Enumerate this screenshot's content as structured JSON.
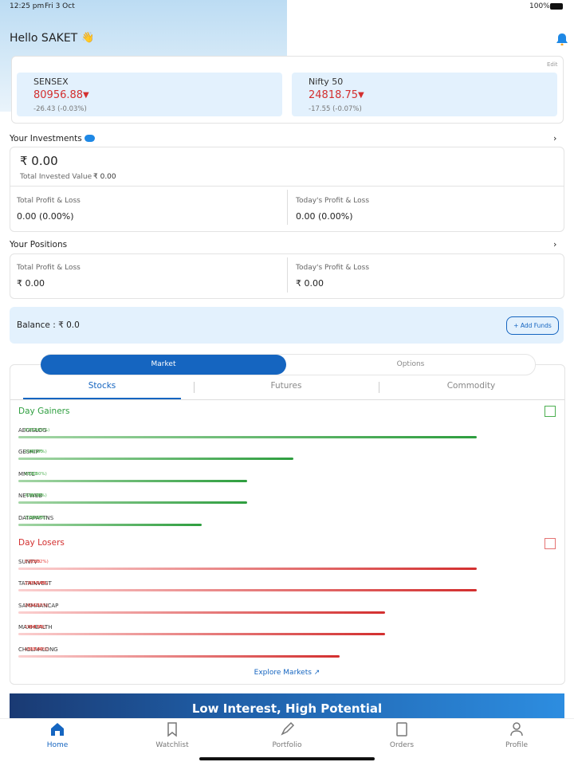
{
  "status_bar": {
    "time": "12:25 pm",
    "date": "Fri 3 Oct",
    "battery": "100%"
  },
  "header": {
    "greeting": "Hello SAKET",
    "emoji": "👋"
  },
  "indices": {
    "edit": "Edit",
    "items": [
      {
        "name": "SENSEX",
        "value": "80956.88",
        "change": "-26.43 (-0.03%)"
      },
      {
        "name": "Nifty 50",
        "value": "24818.75",
        "change": "-17.55 (-0.07%)"
      }
    ]
  },
  "investments": {
    "title": "Your Investments",
    "amount": "₹ 0.00",
    "invested_label": "Total Invested Value",
    "invested_value": "₹ 0.00",
    "total_pl_label": "Total Profit & Loss",
    "total_pl": "0.00 (0.00%)",
    "today_pl_label": "Today's Profit & Loss",
    "today_pl": "0.00 (0.00%)"
  },
  "positions": {
    "title": "Your Positions",
    "total_pl_label": "Total Profit & Loss",
    "total_pl": "₹ 0.00",
    "today_pl_label": "Today's Profit & Loss",
    "today_pl": "₹ 0.00"
  },
  "balance": {
    "label": "Balance : ₹ 0.0",
    "button": "+ Add Funds"
  },
  "market": {
    "segments": [
      "Market",
      "Options"
    ],
    "tabs": [
      "Stocks",
      "Futures",
      "Commodity"
    ],
    "gainers": {
      "title": "Day Gainers",
      "items": [
        {
          "symbol": "AEGISLOG",
          "price": "875.80",
          "change": "(11.26%)"
        },
        {
          "symbol": "GESHIP",
          "price": "1057.00",
          "change": "(6.27%)"
        },
        {
          "symbol": "MMTC",
          "price": "68.88",
          "change": "(5.30%)"
        },
        {
          "symbol": "NETWEB",
          "price": "4280.00",
          "change": "(5.36%)"
        },
        {
          "symbol": "DATAPATTNS",
          "price": "2758.90",
          "change": "(4.87%)"
        }
      ]
    },
    "losers": {
      "title": "Day Losers",
      "items": [
        {
          "symbol": "SUNTV",
          "price": "570.80",
          "change": "(-5.32%)"
        },
        {
          "symbol": "TATAINVEST",
          "price": "10015.00",
          "change": "(-5.34%)"
        },
        {
          "symbol": "SAMMAANCAP",
          "price": "162.21",
          "change": "(-4.35%)"
        },
        {
          "symbol": "MAXHEALTH",
          "price": "1063.00",
          "change": "(-4.5%)"
        },
        {
          "symbol": "CHOLAHLDNG",
          "price": "1838.80",
          "change": "(-3.61%)"
        }
      ]
    },
    "explore": "Explore Markets"
  },
  "banner": "Low Interest, High Potential",
  "nav": [
    "Home",
    "Watchlist",
    "Portfolio",
    "Orders",
    "Profile"
  ]
}
